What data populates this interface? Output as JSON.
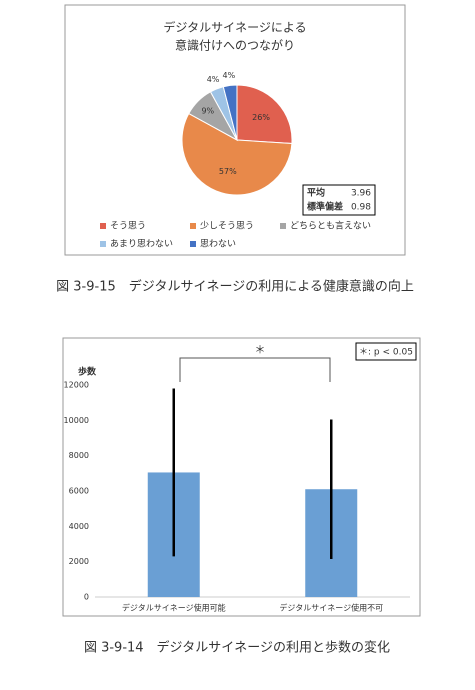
{
  "chart_data": [
    {
      "type": "pie",
      "title": [
        "デジタルサイネージによる",
        "意識付けへのつながり"
      ],
      "categories": [
        "そう思う",
        "少しそう思う",
        "どちらとも言えない",
        "あまり思わない",
        "思わない"
      ],
      "values": [
        26,
        57,
        9,
        4,
        4
      ],
      "value_labels": [
        "26%",
        "57%",
        "9%",
        "4%",
        "4%"
      ],
      "colors": [
        "#e0604f",
        "#e8894a",
        "#a5a5a5",
        "#9ec3e6",
        "#4472c4"
      ],
      "stats": [
        {
          "label": "平均",
          "value": 3.96
        },
        {
          "label": "標準偏差",
          "value": 0.98
        }
      ],
      "caption": "図 3-9-15　デジタルサイネージの利用による健康意識の向上"
    },
    {
      "type": "bar",
      "y_label": "歩数",
      "categories": [
        "デジタルサイネージ使用可能",
        "デジタルサイネージ使用不可"
      ],
      "values": [
        7050,
        6100
      ],
      "errors": [
        4750,
        3950
      ],
      "color": "#6a9fd4",
      "ylim": [
        0,
        12000
      ],
      "yticks": [
        0,
        2000,
        4000,
        6000,
        8000,
        10000,
        12000
      ],
      "annotation": "＊",
      "significance_note": "＊: p < 0.05",
      "caption": "図 3-9-14　デジタルサイネージの利用と歩数の変化"
    }
  ]
}
